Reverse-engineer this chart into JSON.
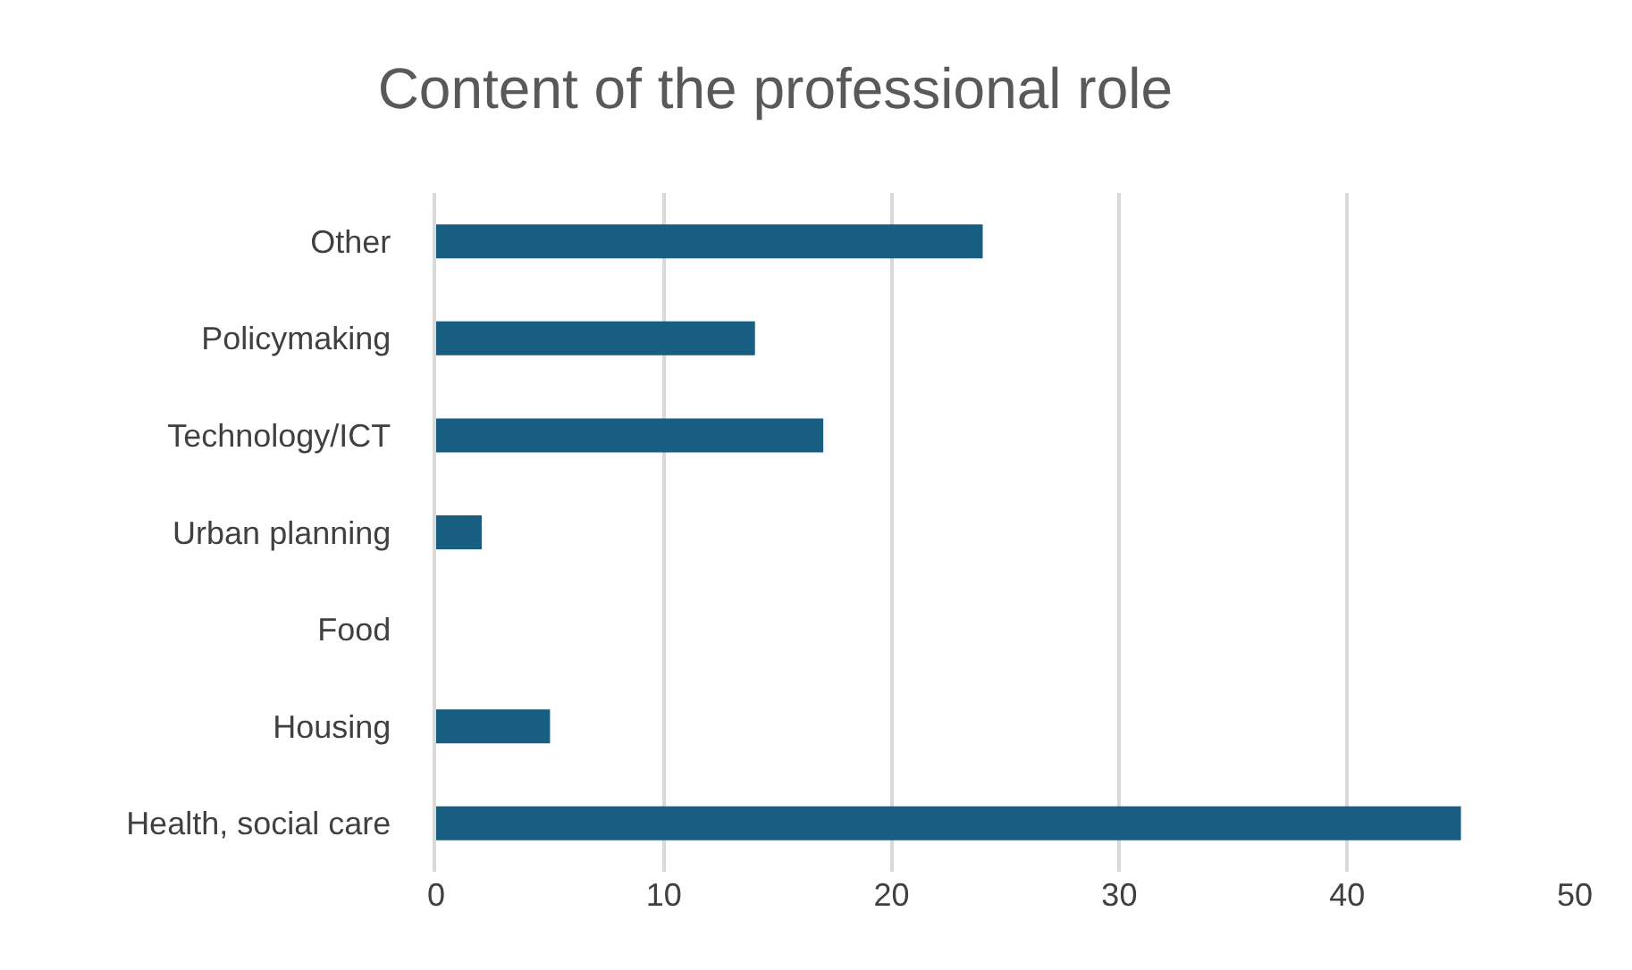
{
  "chart_data": {
    "type": "bar",
    "orientation": "horizontal",
    "title": "Content of the professional role",
    "categories": [
      "Other",
      "Policymaking",
      "Technology/ICT",
      "Urban planning",
      "Food",
      "Housing",
      "Health, social care"
    ],
    "values": [
      24,
      14,
      17,
      2,
      0,
      5,
      45
    ],
    "color": "#175e82",
    "xlim": [
      0,
      50
    ],
    "xticks": [
      0,
      10,
      20,
      30,
      40,
      50
    ],
    "grid": "x"
  }
}
